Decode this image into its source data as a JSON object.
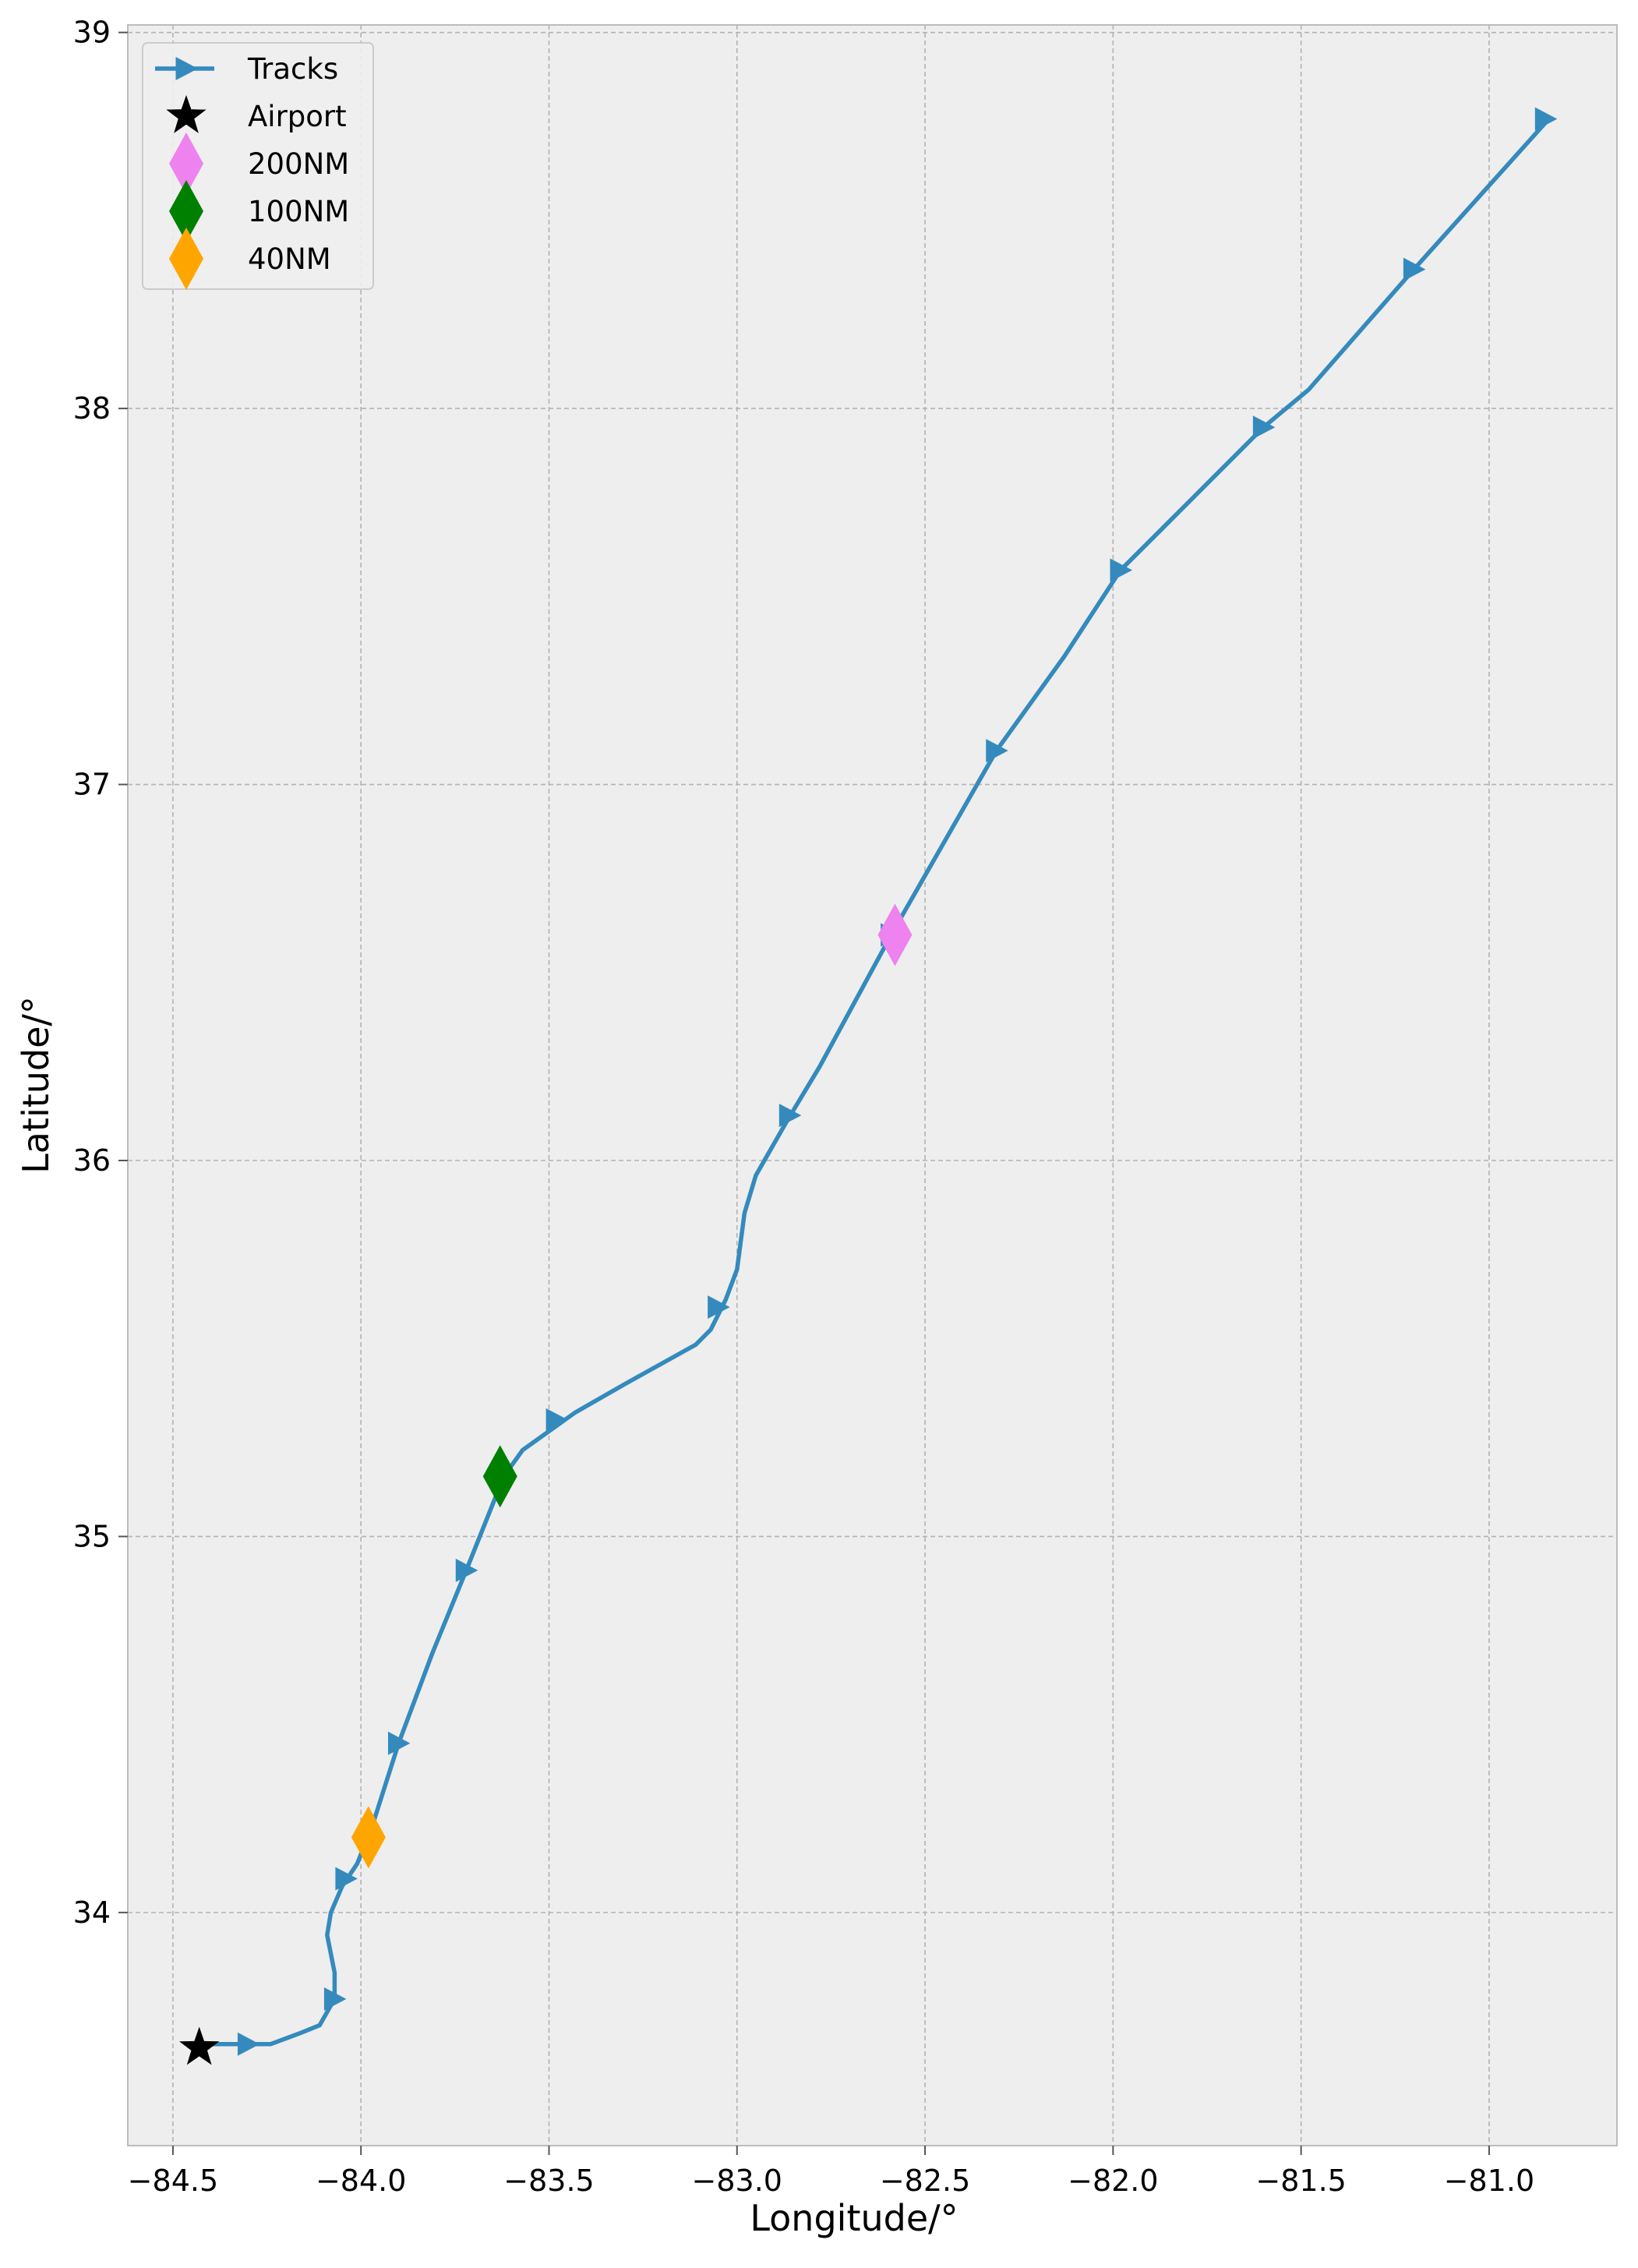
{
  "chart_data": {
    "type": "line",
    "xlabel": "Longitude/$^{\\circ}$",
    "xlabel_display": "Longitude/°",
    "ylabel": "Latitude/$^{\\circ}$",
    "ylabel_display": "Latitude/°",
    "xlim": [
      -84.62,
      -80.66
    ],
    "ylim": [
      33.38,
      39.02
    ],
    "xticks": [
      -84.5,
      -84.0,
      -83.5,
      -83.0,
      -82.5,
      -82.0,
      -81.5,
      -81.0
    ],
    "xtick_labels": [
      "−84.5",
      "−84.0",
      "−83.5",
      "−83.0",
      "−82.5",
      "−82.0",
      "−81.5",
      "−81.0"
    ],
    "yticks": [
      34,
      35,
      36,
      37,
      38,
      39
    ],
    "ytick_labels": [
      "34",
      "35",
      "36",
      "37",
      "38",
      "39"
    ],
    "grid": true,
    "legend_position": "top-left",
    "series": [
      {
        "name": "Tracks",
        "color": "#348abd",
        "marker": "triangle-right",
        "points": [
          [
            -84.44,
            33.65
          ],
          [
            -84.3,
            33.65
          ],
          [
            -84.24,
            33.65
          ],
          [
            -84.16,
            33.68
          ],
          [
            -84.11,
            33.7
          ],
          [
            -84.07,
            33.77
          ],
          [
            -84.07,
            33.84
          ],
          [
            -84.09,
            33.94
          ],
          [
            -84.08,
            34.0
          ],
          [
            -84.05,
            34.07
          ],
          [
            -84.01,
            34.13
          ],
          [
            -83.97,
            34.23
          ],
          [
            -83.9,
            34.45
          ],
          [
            -83.81,
            34.69
          ],
          [
            -83.72,
            34.91
          ],
          [
            -83.62,
            35.16
          ],
          [
            -83.57,
            35.23
          ],
          [
            -83.5,
            35.28
          ],
          [
            -83.43,
            35.33
          ],
          [
            -83.29,
            35.41
          ],
          [
            -83.11,
            35.51
          ],
          [
            -83.07,
            35.55
          ],
          [
            -83.03,
            35.63
          ],
          [
            -83.0,
            35.71
          ],
          [
            -82.98,
            35.86
          ],
          [
            -82.95,
            35.96
          ],
          [
            -82.87,
            36.1
          ],
          [
            -82.78,
            36.25
          ],
          [
            -82.59,
            36.6
          ],
          [
            -82.31,
            37.09
          ],
          [
            -82.13,
            37.34
          ],
          [
            -81.98,
            37.57
          ],
          [
            -81.87,
            37.68
          ],
          [
            -81.6,
            37.95
          ],
          [
            -81.48,
            38.05
          ],
          [
            -81.34,
            38.21
          ],
          [
            -81.2,
            38.37
          ],
          [
            -80.85,
            38.76
          ]
        ],
        "marker_points": [
          [
            -84.3,
            33.65
          ],
          [
            -84.07,
            33.77
          ],
          [
            -84.04,
            34.09
          ],
          [
            -83.9,
            34.45
          ],
          [
            -83.72,
            34.91
          ],
          [
            -83.48,
            35.31
          ],
          [
            -83.05,
            35.61
          ],
          [
            -82.86,
            36.12
          ],
          [
            -82.59,
            36.6
          ],
          [
            -82.31,
            37.09
          ],
          [
            -81.98,
            37.57
          ],
          [
            -81.6,
            37.95
          ],
          [
            -81.2,
            38.37
          ],
          [
            -80.85,
            38.77
          ]
        ]
      },
      {
        "name": "Airport",
        "color": "#000000",
        "marker": "star",
        "points": [
          [
            -84.43,
            33.64
          ]
        ]
      },
      {
        "name": "200NM",
        "color": "#ee82ee",
        "marker": "diamond",
        "points": [
          [
            -82.58,
            36.6
          ]
        ]
      },
      {
        "name": "100NM",
        "color": "#008000",
        "marker": "diamond",
        "points": [
          [
            -83.63,
            35.16
          ]
        ]
      },
      {
        "name": "40NM",
        "color": "#ffa500",
        "marker": "diamond",
        "points": [
          [
            -83.98,
            34.2
          ]
        ]
      }
    ]
  }
}
